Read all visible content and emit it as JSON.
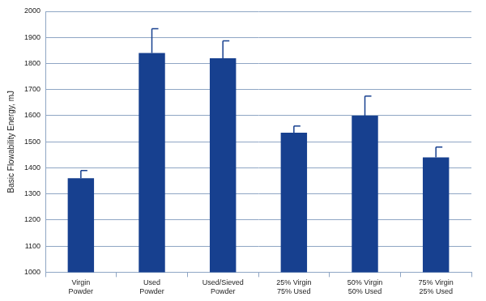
{
  "chart_data": {
    "type": "bar",
    "y_label": "Basic Flowability Energy, mJ",
    "categories": [
      [
        "Virgin",
        "Powder"
      ],
      [
        "Used",
        "Powder"
      ],
      [
        "Used/Sieved",
        "Powder"
      ],
      [
        "25% Virgin",
        "75% Used"
      ],
      [
        "50% Virgin",
        "50% Used"
      ],
      [
        "75% Virgin",
        "25% Used"
      ]
    ],
    "values": [
      1360,
      1840,
      1820,
      1535,
      1600,
      1440
    ],
    "errors": [
      30,
      93,
      67,
      25,
      75,
      40
    ],
    "color": "#17408f",
    "ylim": [
      1000,
      2000
    ],
    "yticks": [
      1000,
      1100,
      1200,
      1300,
      1400,
      1500,
      1600,
      1700,
      1800,
      1900,
      2000
    ],
    "grid": true
  }
}
